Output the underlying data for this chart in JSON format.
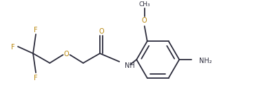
{
  "background_color": "#ffffff",
  "line_color": "#2a2a3a",
  "oxygen_color": "#b8860b",
  "nitrogen_color": "#2a2a3a",
  "figsize": [
    3.76,
    1.46
  ],
  "dpi": 100,
  "bond_lw": 1.3,
  "font_size": 7.0,
  "xlim": [
    0,
    376
  ],
  "ylim": [
    0,
    146
  ]
}
